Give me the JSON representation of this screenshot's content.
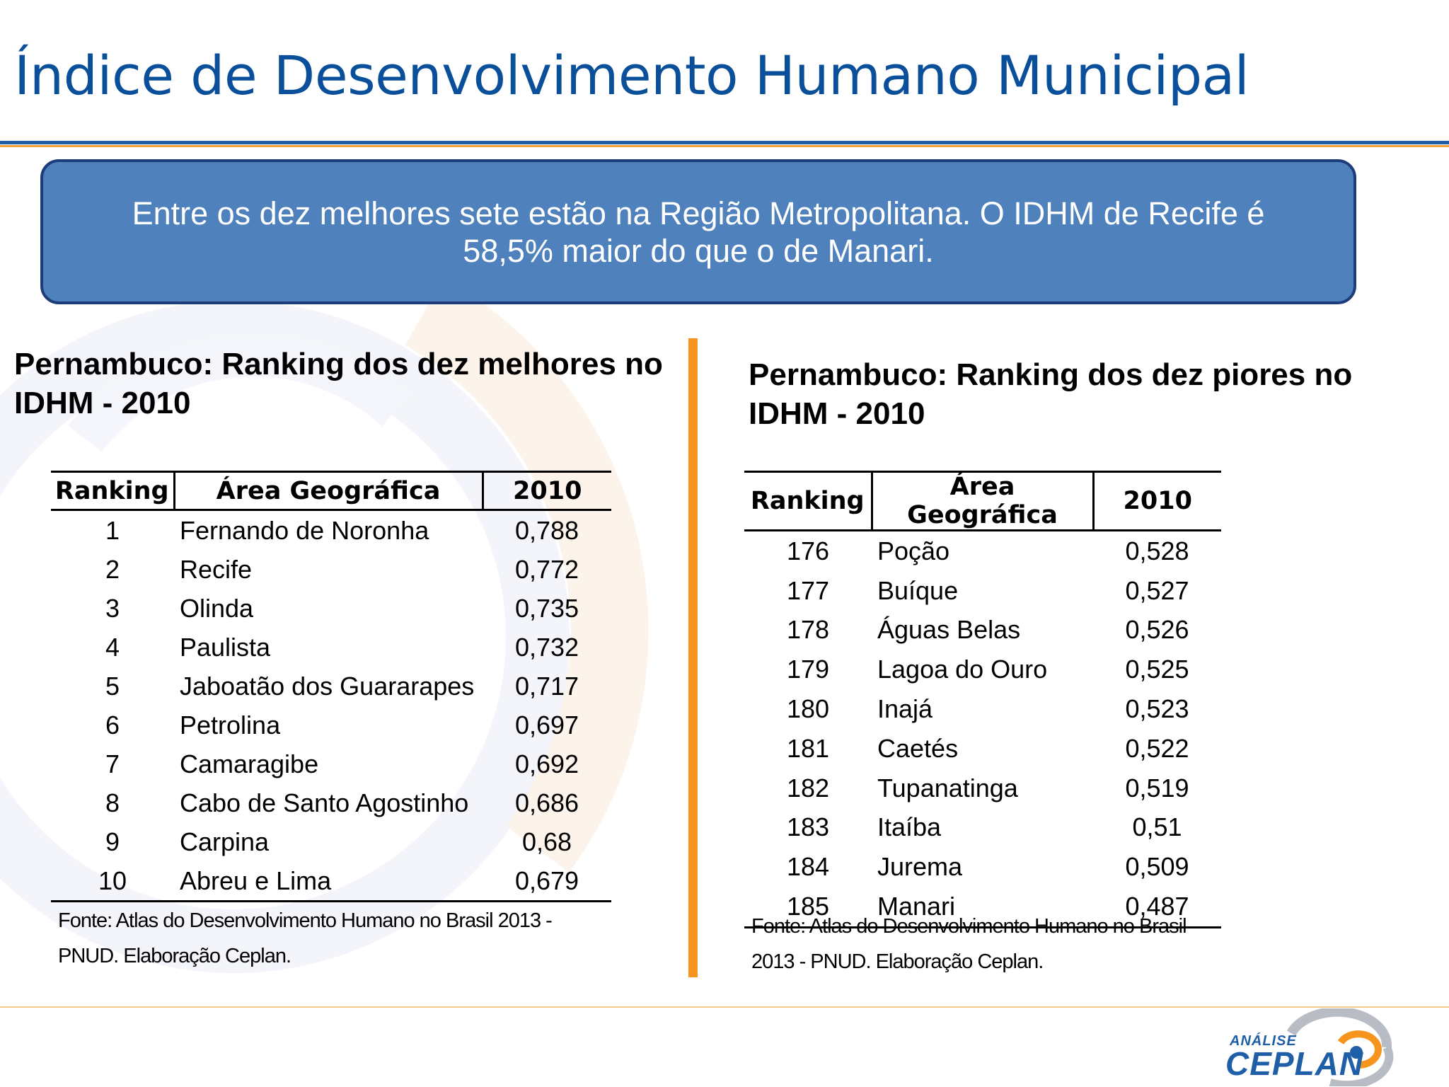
{
  "title": "Índice de Desenvolvimento Humano Municipal",
  "callout": "Entre os dez melhores sete estão na Região Metropolitana. O IDHM de Recife  é 58,5% maior do que o de Manari.",
  "best": {
    "title": "Pernambuco: Ranking dos dez melhores no IDHM  - 2010",
    "headers": [
      "Ranking",
      "Área Geográfica",
      "2010"
    ],
    "rows": [
      [
        "1",
        "Fernando de Noronha",
        "0,788"
      ],
      [
        "2",
        "Recife",
        "0,772"
      ],
      [
        "3",
        "Olinda",
        "0,735"
      ],
      [
        "4",
        "Paulista",
        "0,732"
      ],
      [
        "5",
        "Jaboatão dos Guararapes",
        "0,717"
      ],
      [
        "6",
        "Petrolina",
        "0,697"
      ],
      [
        "7",
        "Camaragibe",
        "0,692"
      ],
      [
        "8",
        "Cabo de Santo Agostinho",
        "0,686"
      ],
      [
        "9",
        "Carpina",
        "0,68"
      ],
      [
        "10",
        "Abreu e Lima",
        "0,679"
      ]
    ],
    "source": "Fonte: Atlas do Desenvolvimento Humano no Brasil 2013 - PNUD. Elaboração Ceplan."
  },
  "worst": {
    "title": "Pernambuco: Ranking dos dez piores no IDHM  - 2010",
    "headers": [
      "Ranking",
      "Área Geográfica",
      "2010"
    ],
    "rows": [
      [
        "176",
        "Poção",
        "0,528"
      ],
      [
        "177",
        "Buíque",
        "0,527"
      ],
      [
        "178",
        "Águas Belas",
        "0,526"
      ],
      [
        "179",
        "Lagoa do Ouro",
        "0,525"
      ],
      [
        "180",
        "Inajá",
        "0,523"
      ],
      [
        "181",
        "Caetés",
        "0,522"
      ],
      [
        "182",
        "Tupanatinga",
        "0,519"
      ],
      [
        "183",
        "Itaíba",
        "0,51"
      ],
      [
        "184",
        "Jurema",
        "0,509"
      ],
      [
        "185",
        "Manari",
        "0,487"
      ]
    ],
    "source": "Fonte: Atlas do Desenvolvimento Humano no Brasil 2013 - PNUD. Elaboração Ceplan."
  },
  "logo": {
    "small": "ANÁLISE",
    "main": "CEPLAN"
  },
  "colors": {
    "title": "#0a4f9a",
    "callout_bg": "#4f81bd",
    "callout_border": "#1c3d7a",
    "divider": "#f7941d",
    "rule_blue": "#1f5fa8",
    "rule_orange": "#f5a33a"
  }
}
